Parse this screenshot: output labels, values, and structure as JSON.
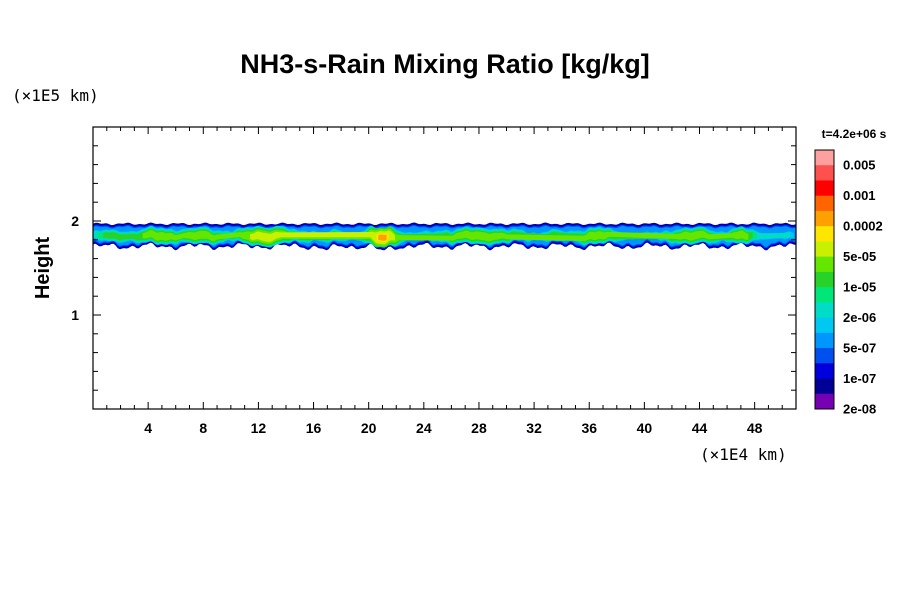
{
  "chart_data": {
    "type": "heatmap",
    "title": "NH3-s-Rain Mixing Ratio [kg/kg]",
    "ylabel": "Height",
    "x_unit": "(×1E4 km)",
    "y_unit": "(×1E5 km)",
    "time_label": "t=4.2e+06 s",
    "xlim": [
      0,
      51
    ],
    "ylim": [
      0,
      3
    ],
    "x_ticks": [
      "4",
      "8",
      "12",
      "16",
      "20",
      "24",
      "28",
      "32",
      "36",
      "40",
      "44",
      "48"
    ],
    "y_ticks": [
      "1",
      "2"
    ],
    "colorbar": {
      "labels": [
        "0.005",
        "0.001",
        "0.0002",
        "5e-05",
        "1e-05",
        "2e-06",
        "5e-07",
        "1e-07",
        "2e-08"
      ],
      "colors": [
        "#ffa0a0",
        "#ff5050",
        "#ff0000",
        "#ff6400",
        "#ffa000",
        "#ffe600",
        "#c8f000",
        "#64e600",
        "#28d228",
        "#00e678",
        "#00dcc8",
        "#00c8f0",
        "#0096ff",
        "#0050f0",
        "#0000dc",
        "#000096",
        "#7800b4"
      ]
    },
    "cloud_layer": {
      "top": 1.97,
      "mean_base": 1.73,
      "blobs": [
        {
          "x": 1.5,
          "w": 2.0,
          "v": 2
        },
        {
          "x": 4.8,
          "w": 2.5,
          "v": 3
        },
        {
          "x": 7.8,
          "w": 2.4,
          "v": 3
        },
        {
          "x": 12.5,
          "w": 2.5,
          "v": 4
        },
        {
          "x": 15.2,
          "w": 1.5,
          "v": 2
        },
        {
          "x": 17.5,
          "w": 1.2,
          "v": 2
        },
        {
          "x": 21.0,
          "w": 1.4,
          "v": 5
        },
        {
          "x": 23.0,
          "w": 1.0,
          "v": 1
        },
        {
          "x": 28.0,
          "w": 4.0,
          "v": 3
        },
        {
          "x": 33.5,
          "w": 1.3,
          "v": 2
        },
        {
          "x": 36.5,
          "w": 2.0,
          "v": 3
        },
        {
          "x": 43.5,
          "w": 2.5,
          "v": 3
        },
        {
          "x": 47.0,
          "w": 1.3,
          "v": 3
        },
        {
          "x": 50.4,
          "w": 0.6,
          "v": 1
        }
      ]
    }
  }
}
